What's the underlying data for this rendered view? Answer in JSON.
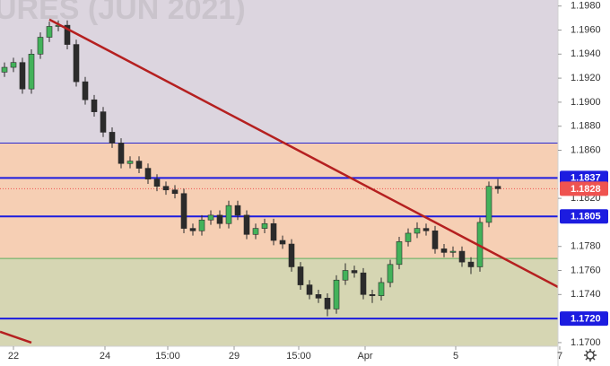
{
  "chart_data": {
    "type": "candlestick",
    "watermark": "URES (JUN 2021)",
    "x": [
      1,
      3,
      5,
      7,
      9,
      11,
      13,
      15,
      17,
      19,
      21,
      23,
      25,
      27,
      29,
      31,
      33,
      35,
      37,
      39,
      41,
      43,
      45,
      47,
      49,
      51,
      53,
      55,
      57,
      59,
      61,
      63,
      65,
      67,
      69,
      71,
      73,
      75,
      77,
      79,
      81,
      83,
      85,
      87,
      89,
      91,
      93,
      95,
      97,
      99,
      101,
      103,
      105,
      107,
      109,
      111
    ],
    "open": [
      1.1925,
      1.1929,
      1.1933,
      1.1911,
      1.194,
      1.1954,
      1.1963,
      1.1964,
      1.1948,
      1.1917,
      1.1902,
      1.1892,
      1.1875,
      1.1866,
      1.1849,
      1.1851,
      1.1845,
      1.1836,
      1.183,
      1.1827,
      1.1824,
      1.1795,
      1.1793,
      1.1802,
      1.1806,
      1.1799,
      1.1814,
      1.1806,
      1.179,
      1.1795,
      1.1799,
      1.1785,
      1.1782,
      1.1763,
      1.1748,
      1.174,
      1.1737,
      1.1728,
      1.1752,
      1.176,
      1.1758,
      1.174,
      1.1739,
      1.175,
      1.1765,
      1.1784,
      1.1791,
      1.1795,
      1.1793,
      1.1778,
      1.1775,
      1.1776,
      1.1767,
      1.1763,
      1.18,
      1.183
    ],
    "high": [
      1.1933,
      1.1937,
      1.1937,
      1.1944,
      1.1958,
      1.1967,
      1.1968,
      1.1968,
      1.1952,
      1.1921,
      1.1906,
      1.1896,
      1.1879,
      1.187,
      1.1855,
      1.1855,
      1.1849,
      1.184,
      1.1834,
      1.1831,
      1.1828,
      1.1799,
      1.1806,
      1.181,
      1.181,
      1.1818,
      1.1818,
      1.181,
      1.1799,
      1.1803,
      1.1803,
      1.1789,
      1.1786,
      1.1767,
      1.1752,
      1.1744,
      1.1741,
      1.1756,
      1.1766,
      1.1764,
      1.1762,
      1.1744,
      1.1754,
      1.1769,
      1.1788,
      1.1795,
      1.18,
      1.1799,
      1.1797,
      1.1782,
      1.178,
      1.178,
      1.1771,
      1.1804,
      1.1834,
      1.1836
    ],
    "low": [
      1.1921,
      1.1925,
      1.1907,
      1.1907,
      1.1936,
      1.195,
      1.1959,
      1.1944,
      1.1913,
      1.1898,
      1.1888,
      1.1871,
      1.1862,
      1.1845,
      1.1845,
      1.1841,
      1.1832,
      1.1826,
      1.1823,
      1.182,
      1.1791,
      1.1789,
      1.1789,
      1.1798,
      1.1795,
      1.1795,
      1.1802,
      1.1786,
      1.1786,
      1.1791,
      1.1781,
      1.1778,
      1.1759,
      1.1744,
      1.1736,
      1.1733,
      1.1722,
      1.1724,
      1.1748,
      1.1754,
      1.1736,
      1.1733,
      1.1735,
      1.1746,
      1.1761,
      1.178,
      1.1787,
      1.1789,
      1.1774,
      1.1771,
      1.1771,
      1.1763,
      1.1757,
      1.1759,
      1.1796,
      1.1824
    ],
    "close": [
      1.1929,
      1.1933,
      1.1911,
      1.194,
      1.1954,
      1.1963,
      1.1964,
      1.1948,
      1.1917,
      1.1902,
      1.1892,
      1.1875,
      1.1866,
      1.1849,
      1.1851,
      1.1845,
      1.1836,
      1.183,
      1.1827,
      1.1824,
      1.1795,
      1.1793,
      1.1802,
      1.1806,
      1.1799,
      1.1814,
      1.1806,
      1.179,
      1.1795,
      1.1799,
      1.1785,
      1.1782,
      1.1763,
      1.1748,
      1.174,
      1.1737,
      1.1728,
      1.1752,
      1.176,
      1.1758,
      1.174,
      1.1739,
      1.175,
      1.1765,
      1.1784,
      1.1791,
      1.1795,
      1.1793,
      1.1778,
      1.1775,
      1.1776,
      1.1767,
      1.1763,
      1.18,
      1.183,
      1.1828
    ],
    "up_color": "#43b25a",
    "down_color": "#2b2b2b",
    "xlim": [
      0,
      136
    ],
    "xticks": [
      {
        "value": 3,
        "label": "22"
      },
      {
        "value": 23.4,
        "label": "24"
      },
      {
        "value": 37.4,
        "label": "15:00"
      },
      {
        "value": 52.2,
        "label": "29"
      },
      {
        "value": 66.6,
        "label": "15:00"
      },
      {
        "value": 81.4,
        "label": "Apr"
      },
      {
        "value": 101.6,
        "label": "5"
      },
      {
        "value": 124.8,
        "label": "7"
      }
    ],
    "ylim": [
      1.1688,
      1.1985
    ],
    "yticks": [
      {
        "value": 1.198,
        "label": "1.1980"
      },
      {
        "value": 1.196,
        "label": "1.1960"
      },
      {
        "value": 1.194,
        "label": "1.1940"
      },
      {
        "value": 1.192,
        "label": "1.1920"
      },
      {
        "value": 1.19,
        "label": "1.1900"
      },
      {
        "value": 1.188,
        "label": "1.1880"
      },
      {
        "value": 1.186,
        "label": "1.1860"
      },
      {
        "value": 1.182,
        "label": "1.1820"
      },
      {
        "value": 1.178,
        "label": "1.1780"
      },
      {
        "value": 1.176,
        "label": "1.1760"
      },
      {
        "value": 1.174,
        "label": "1.1740"
      },
      {
        "value": 1.17,
        "label": "1.1700"
      }
    ],
    "grid": false,
    "zones": [
      {
        "from": 1.1866,
        "to": 1.1985,
        "color": "#dcd5df"
      },
      {
        "from": 1.177,
        "to": 1.1866,
        "color": "#f6cfb4"
      },
      {
        "from": 1.1688,
        "to": 1.177,
        "color": "#d6d6b3"
      }
    ],
    "levels": [
      {
        "value": 1.1866,
        "color": "#2a2ad0",
        "width": 1
      },
      {
        "value": 1.1837,
        "label": "1.1837",
        "color": "#1c1ce0",
        "width": 2
      },
      {
        "value": 1.1805,
        "label": "1.1805",
        "color": "#1c1ce0",
        "width": 2
      },
      {
        "value": 1.177,
        "color": "#5fae5f",
        "width": 1
      },
      {
        "value": 1.172,
        "label": "1.1720",
        "color": "#1c1ce0",
        "width": 2
      }
    ],
    "trendlines": [
      {
        "x": [
          11,
          124.4
        ],
        "y": [
          1.19688,
          1.17463
        ],
        "color": "#b52020"
      },
      {
        "x": [
          0,
          7
        ],
        "y": [
          1.1709,
          1.17
        ],
        "color": "#b52020"
      }
    ],
    "last_price": {
      "value": 1.1828,
      "label": "1.1828",
      "color": "#ef5350"
    }
  }
}
